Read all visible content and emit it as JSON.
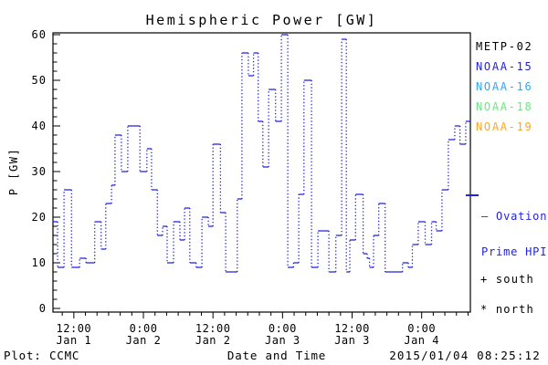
{
  "title": "Hemispheric Power [GW]",
  "legend": {
    "satellites": [
      {
        "label": "METP-02",
        "color": "#000000"
      },
      {
        "label": "NOAA-15",
        "color": "#2222dd"
      },
      {
        "label": "NOAA-16",
        "color": "#35a6f2"
      },
      {
        "label": "NOAA-18",
        "color": "#6ee683"
      },
      {
        "label": "NOAA-19",
        "color": "#ffa629"
      }
    ],
    "ovation_lines": [
      "— Ovation",
      "Prime HPI"
    ],
    "ovation_color": "#2222dd",
    "south_label": "+ south",
    "north_label": "* north"
  },
  "footer": {
    "left": "Plot: CCMC",
    "center": "Date and Time",
    "right": "2015/01/04 08:25:12"
  },
  "chart_data": {
    "type": "line",
    "step_mode": true,
    "title": "Hemispheric Power [GW]",
    "xlabel": "Date and Time",
    "ylabel": "P [GW]",
    "ylim": [
      0,
      60
    ],
    "y_major_ticks": [
      0,
      10,
      20,
      30,
      40,
      50,
      60
    ],
    "y_minor_step": 2,
    "grid": false,
    "legend_position": "right",
    "x_unit": "hours since 2015-01-01 00:00",
    "x_range_hours": [
      8.4,
      80.4
    ],
    "x_minor_step_hours": 2,
    "x_major_ticks": [
      {
        "hour": 12,
        "time": "12:00",
        "date": "Jan 1"
      },
      {
        "hour": 24,
        "time": "0:00",
        "date": "Jan 2"
      },
      {
        "hour": 36,
        "time": "12:00",
        "date": "Jan 2"
      },
      {
        "hour": 48,
        "time": "0:00",
        "date": "Jan 3"
      },
      {
        "hour": 60,
        "time": "12:00",
        "date": "Jan 3"
      },
      {
        "hour": 72,
        "time": "0:00",
        "date": "Jan 4"
      }
    ],
    "series": [
      {
        "name": "Ovation Prime HPI (NOAA-15)",
        "color": "#2222dd",
        "steps": [
          [
            8.4,
            19
          ],
          [
            9.2,
            9
          ],
          [
            10.3,
            26
          ],
          [
            11.6,
            9
          ],
          [
            13.0,
            11
          ],
          [
            14.1,
            10
          ],
          [
            15.6,
            19
          ],
          [
            16.7,
            13
          ],
          [
            17.5,
            23
          ],
          [
            18.5,
            27
          ],
          [
            19.1,
            38
          ],
          [
            20.2,
            30
          ],
          [
            21.3,
            40
          ],
          [
            23.4,
            30
          ],
          [
            24.6,
            35
          ],
          [
            25.4,
            26
          ],
          [
            26.4,
            16
          ],
          [
            27.3,
            18
          ],
          [
            28.1,
            10
          ],
          [
            29.2,
            19
          ],
          [
            30.3,
            15
          ],
          [
            31.1,
            22
          ],
          [
            32.0,
            10
          ],
          [
            33.1,
            9
          ],
          [
            34.1,
            20
          ],
          [
            35.2,
            18
          ],
          [
            36.0,
            36
          ],
          [
            37.3,
            21
          ],
          [
            38.2,
            8
          ],
          [
            40.2,
            24
          ],
          [
            41.0,
            56
          ],
          [
            42.1,
            51
          ],
          [
            43.0,
            56
          ],
          [
            43.8,
            41
          ],
          [
            44.6,
            31
          ],
          [
            45.6,
            48
          ],
          [
            46.8,
            41
          ],
          [
            47.8,
            60
          ],
          [
            48.9,
            9
          ],
          [
            49.9,
            10
          ],
          [
            50.8,
            25
          ],
          [
            51.7,
            50
          ],
          [
            53.0,
            9
          ],
          [
            54.1,
            17
          ],
          [
            56.0,
            8
          ],
          [
            57.2,
            16
          ],
          [
            58.2,
            59
          ],
          [
            59.0,
            8
          ],
          [
            59.6,
            15
          ],
          [
            60.6,
            25
          ],
          [
            61.9,
            12
          ],
          [
            62.6,
            11
          ],
          [
            63.0,
            9
          ],
          [
            63.7,
            16
          ],
          [
            64.6,
            23
          ],
          [
            65.7,
            8
          ],
          [
            68.7,
            10
          ],
          [
            69.7,
            9
          ],
          [
            70.4,
            14
          ],
          [
            71.4,
            19
          ],
          [
            72.6,
            14
          ],
          [
            73.7,
            19
          ],
          [
            74.5,
            17
          ],
          [
            75.5,
            26
          ],
          [
            76.6,
            37
          ],
          [
            77.7,
            40
          ],
          [
            78.6,
            36
          ],
          [
            79.6,
            41
          ]
        ]
      }
    ]
  }
}
